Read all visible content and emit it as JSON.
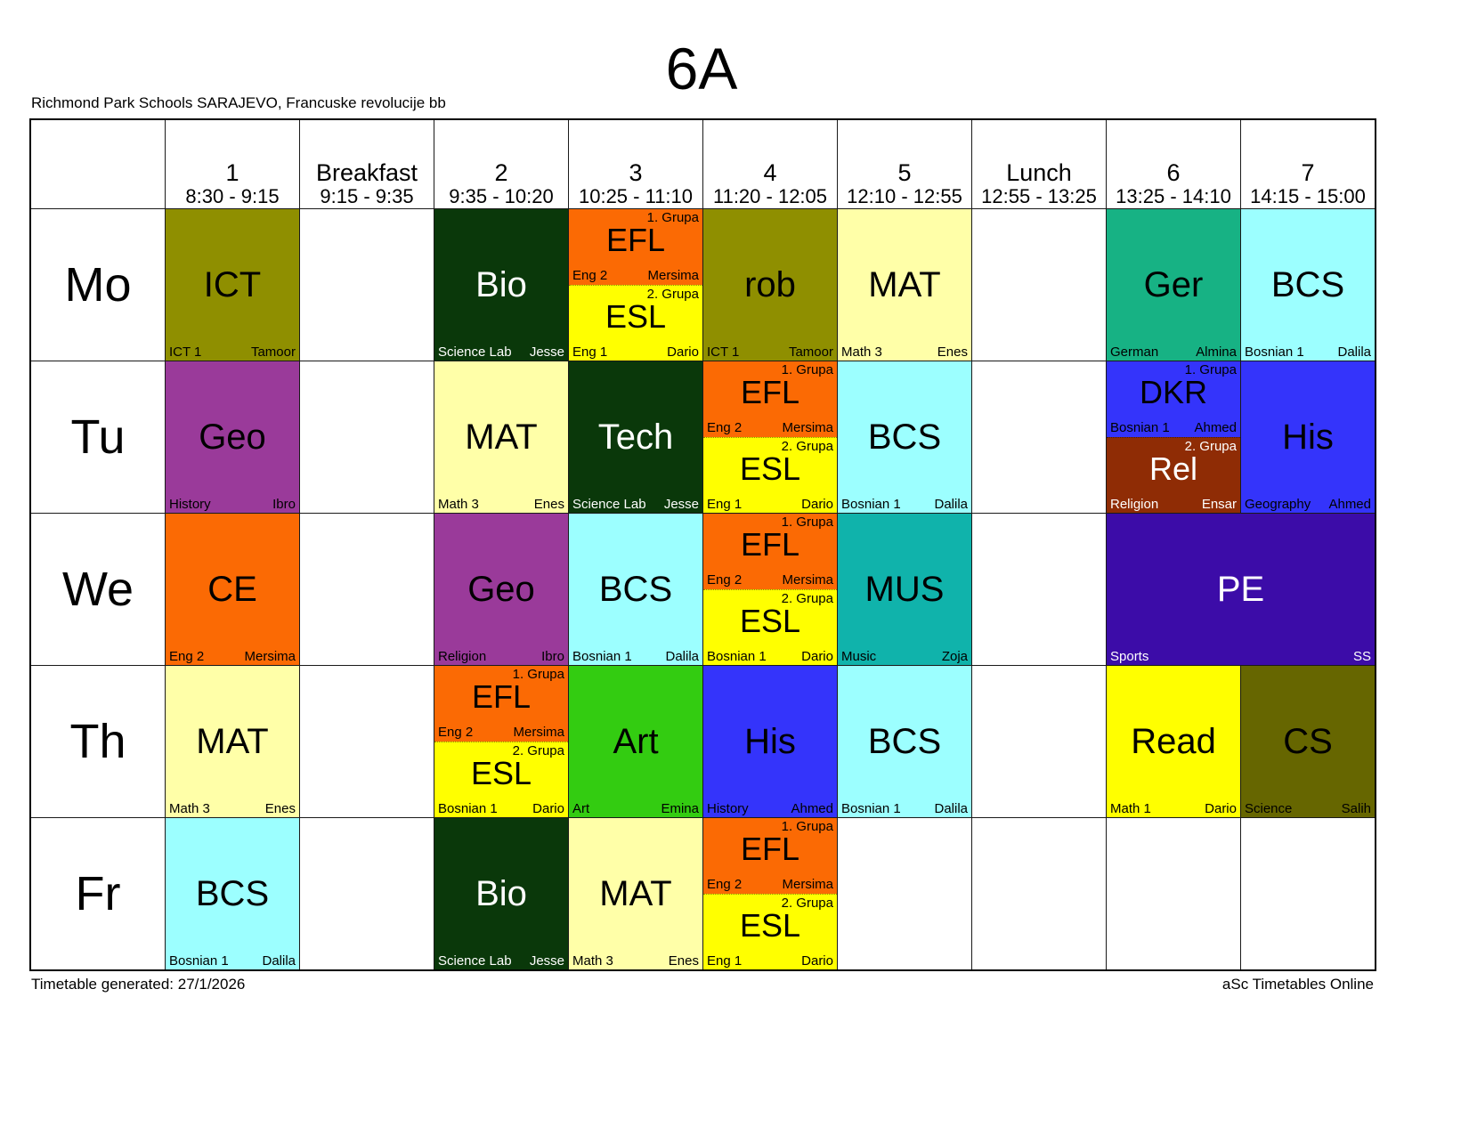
{
  "title": "6A",
  "subtitle": "Richmond Park Schools SARAJEVO, Francuske revolucije bb",
  "notes": {
    "generated": "Timetable generated: 27/1/2026",
    "brand": "aSc Timetables Online"
  },
  "days": [
    "Mo",
    "Tu",
    "We",
    "Th",
    "Fr"
  ],
  "columns": [
    {
      "label": "1",
      "time": "8:30 - 9:15"
    },
    {
      "label": "Breakfast",
      "time": "9:15 - 9:35"
    },
    {
      "label": "2",
      "time": "9:35 - 10:20"
    },
    {
      "label": "3",
      "time": "10:25 - 11:10"
    },
    {
      "label": "4",
      "time": "11:20 - 12:05"
    },
    {
      "label": "5",
      "time": "12:10 - 12:55"
    },
    {
      "label": "Lunch",
      "time": "12:55 - 13:25"
    },
    {
      "label": "6",
      "time": "13:25 - 14:10"
    },
    {
      "label": "7",
      "time": "14:15 - 15:00"
    }
  ],
  "cells": [
    {
      "day": 0,
      "col": 0,
      "span": 1,
      "type": "simple",
      "subject": "ICT",
      "room": "ICT 1",
      "teacher": "Tamoor",
      "bg": "#8f8f00",
      "fg": "#000000"
    },
    {
      "day": 0,
      "col": 2,
      "span": 1,
      "type": "simple",
      "subject": "Bio",
      "room": "Science Lab",
      "teacher": "Jesse",
      "bg": "#0a380a",
      "fg": "#ffffff"
    },
    {
      "day": 0,
      "col": 3,
      "span": 1,
      "type": "split",
      "parts": [
        {
          "group": "1. Grupa",
          "subject": "EFL",
          "room": "Eng 2",
          "teacher": "Mersima",
          "bg": "#fb6a04",
          "fg": "#000000"
        },
        {
          "group": "2. Grupa",
          "subject": "ESL",
          "room": "Eng 1",
          "teacher": "Dario",
          "bg": "#ffff00",
          "fg": "#000000"
        }
      ]
    },
    {
      "day": 0,
      "col": 4,
      "span": 1,
      "type": "simple",
      "subject": "rob",
      "room": "ICT 1",
      "teacher": "Tamoor",
      "bg": "#8f8f00",
      "fg": "#000000"
    },
    {
      "day": 0,
      "col": 5,
      "span": 1,
      "type": "simple",
      "subject": "MAT",
      "room": "Math 3",
      "teacher": "Enes",
      "bg": "#ffffa8",
      "fg": "#000000"
    },
    {
      "day": 0,
      "col": 7,
      "span": 1,
      "type": "simple",
      "subject": "Ger",
      "room": "German",
      "teacher": "Almina",
      "bg": "#17b284",
      "fg": "#000000"
    },
    {
      "day": 0,
      "col": 8,
      "span": 1,
      "type": "simple",
      "subject": "BCS",
      "room": "Bosnian 1",
      "teacher": "Dalila",
      "bg": "#9cffff",
      "fg": "#000000"
    },
    {
      "day": 1,
      "col": 0,
      "span": 1,
      "type": "simple",
      "subject": "Geo",
      "room": "History",
      "teacher": "Ibro",
      "bg": "#9a3a9a",
      "fg": "#000000"
    },
    {
      "day": 1,
      "col": 2,
      "span": 1,
      "type": "simple",
      "subject": "MAT",
      "room": "Math 3",
      "teacher": "Enes",
      "bg": "#ffffa8",
      "fg": "#000000"
    },
    {
      "day": 1,
      "col": 3,
      "span": 1,
      "type": "simple",
      "subject": "Tech",
      "room": "Science Lab",
      "teacher": "Jesse",
      "bg": "#0a380a",
      "fg": "#ffffff"
    },
    {
      "day": 1,
      "col": 4,
      "span": 1,
      "type": "split",
      "parts": [
        {
          "group": "1. Grupa",
          "subject": "EFL",
          "room": "Eng 2",
          "teacher": "Mersima",
          "bg": "#fb6a04",
          "fg": "#000000"
        },
        {
          "group": "2. Grupa",
          "subject": "ESL",
          "room": "Eng 1",
          "teacher": "Dario",
          "bg": "#ffff00",
          "fg": "#000000"
        }
      ]
    },
    {
      "day": 1,
      "col": 5,
      "span": 1,
      "type": "simple",
      "subject": "BCS",
      "room": "Bosnian 1",
      "teacher": "Dalila",
      "bg": "#9cffff",
      "fg": "#000000"
    },
    {
      "day": 1,
      "col": 7,
      "span": 1,
      "type": "split",
      "parts": [
        {
          "group": "1. Grupa",
          "subject": "DKR",
          "room": "Bosnian 1",
          "teacher": "Ahmed",
          "bg": "#3434fb",
          "fg": "#000000"
        },
        {
          "group": "2. Grupa",
          "subject": "Rel",
          "room": "Religion",
          "teacher": "Ensar",
          "bg": "#8f2c05",
          "fg": "#ffffff"
        }
      ]
    },
    {
      "day": 1,
      "col": 8,
      "span": 1,
      "type": "simple",
      "subject": "His",
      "room": "Geography",
      "teacher": "Ahmed",
      "bg": "#3434fb",
      "fg": "#000000"
    },
    {
      "day": 2,
      "col": 0,
      "span": 1,
      "type": "simple",
      "subject": "CE",
      "room": "Eng 2",
      "teacher": "Mersima",
      "bg": "#fb6a04",
      "fg": "#000000"
    },
    {
      "day": 2,
      "col": 2,
      "span": 1,
      "type": "simple",
      "subject": "Geo",
      "room": "Religion",
      "teacher": "Ibro",
      "bg": "#9a3a9a",
      "fg": "#000000"
    },
    {
      "day": 2,
      "col": 3,
      "span": 1,
      "type": "simple",
      "subject": "BCS",
      "room": "Bosnian 1",
      "teacher": "Dalila",
      "bg": "#9cffff",
      "fg": "#000000"
    },
    {
      "day": 2,
      "col": 4,
      "span": 1,
      "type": "split",
      "parts": [
        {
          "group": "1. Grupa",
          "subject": "EFL",
          "room": "Eng 2",
          "teacher": "Mersima",
          "bg": "#fb6a04",
          "fg": "#000000"
        },
        {
          "group": "2. Grupa",
          "subject": "ESL",
          "room": "Bosnian 1",
          "teacher": "Dario",
          "bg": "#ffff00",
          "fg": "#000000"
        }
      ]
    },
    {
      "day": 2,
      "col": 5,
      "span": 1,
      "type": "simple",
      "subject": "MUS",
      "room": "Music",
      "teacher": "Zoja",
      "bg": "#10b3ab",
      "fg": "#000000"
    },
    {
      "day": 2,
      "col": 7,
      "span": 2,
      "type": "simple",
      "subject": "PE",
      "room": "Sports",
      "teacher": "SS",
      "bg": "#3c0ca8",
      "fg": "#ffffff"
    },
    {
      "day": 3,
      "col": 0,
      "span": 1,
      "type": "simple",
      "subject": "MAT",
      "room": "Math 3",
      "teacher": "Enes",
      "bg": "#ffffa8",
      "fg": "#000000"
    },
    {
      "day": 3,
      "col": 2,
      "span": 1,
      "type": "split",
      "parts": [
        {
          "group": "1. Grupa",
          "subject": "EFL",
          "room": "Eng 2",
          "teacher": "Mersima",
          "bg": "#fb6a04",
          "fg": "#000000"
        },
        {
          "group": "2. Grupa",
          "subject": "ESL",
          "room": "Bosnian 1",
          "teacher": "Dario",
          "bg": "#ffff00",
          "fg": "#000000"
        }
      ]
    },
    {
      "day": 3,
      "col": 3,
      "span": 1,
      "type": "simple",
      "subject": "Art",
      "room": "Art",
      "teacher": "Emina",
      "bg": "#33cc11",
      "fg": "#000000"
    },
    {
      "day": 3,
      "col": 4,
      "span": 1,
      "type": "simple",
      "subject": "His",
      "room": "History",
      "teacher": "Ahmed",
      "bg": "#3434fb",
      "fg": "#000000"
    },
    {
      "day": 3,
      "col": 5,
      "span": 1,
      "type": "simple",
      "subject": "BCS",
      "room": "Bosnian 1",
      "teacher": "Dalila",
      "bg": "#9cffff",
      "fg": "#000000"
    },
    {
      "day": 3,
      "col": 7,
      "span": 1,
      "type": "simple",
      "subject": "Read",
      "room": "Math 1",
      "teacher": "Dario",
      "bg": "#ffff00",
      "fg": "#000000"
    },
    {
      "day": 3,
      "col": 8,
      "span": 1,
      "type": "simple",
      "subject": "CS",
      "room": "Science",
      "teacher": "Salih",
      "bg": "#666600",
      "fg": "#000000"
    },
    {
      "day": 4,
      "col": 0,
      "span": 1,
      "type": "simple",
      "subject": "BCS",
      "room": "Bosnian 1",
      "teacher": "Dalila",
      "bg": "#9cffff",
      "fg": "#000000"
    },
    {
      "day": 4,
      "col": 2,
      "span": 1,
      "type": "simple",
      "subject": "Bio",
      "room": "Science Lab",
      "teacher": "Jesse",
      "bg": "#0a380a",
      "fg": "#ffffff"
    },
    {
      "day": 4,
      "col": 3,
      "span": 1,
      "type": "simple",
      "subject": "MAT",
      "room": "Math 3",
      "teacher": "Enes",
      "bg": "#ffffa8",
      "fg": "#000000"
    },
    {
      "day": 4,
      "col": 4,
      "span": 1,
      "type": "split",
      "parts": [
        {
          "group": "1. Grupa",
          "subject": "EFL",
          "room": "Eng 2",
          "teacher": "Mersima",
          "bg": "#fb6a04",
          "fg": "#000000"
        },
        {
          "group": "2. Grupa",
          "subject": "ESL",
          "room": "Eng 1",
          "teacher": "Dario",
          "bg": "#ffff00",
          "fg": "#000000"
        }
      ]
    }
  ]
}
